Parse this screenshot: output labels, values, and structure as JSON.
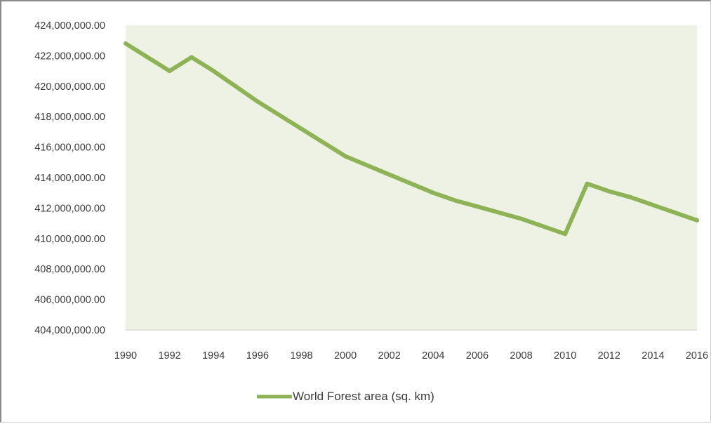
{
  "chart_data": {
    "type": "line",
    "title": "",
    "xlabel": "",
    "ylabel": "",
    "x": [
      1990,
      1991,
      1992,
      1993,
      1994,
      1995,
      1996,
      1997,
      1998,
      1999,
      2000,
      2001,
      2002,
      2003,
      2004,
      2005,
      2006,
      2007,
      2008,
      2009,
      2010,
      2011,
      2012,
      2013,
      2014,
      2015,
      2016
    ],
    "x_ticks": [
      "1990",
      "1992",
      "1994",
      "1996",
      "1998",
      "2000",
      "2002",
      "2004",
      "2006",
      "2008",
      "2010",
      "2012",
      "2014",
      "2016"
    ],
    "x_tick_values": [
      1990,
      1992,
      1994,
      1996,
      1998,
      2000,
      2002,
      2004,
      2006,
      2008,
      2010,
      2012,
      2014,
      2016
    ],
    "xlim": [
      1990,
      2016
    ],
    "ylim": [
      404000000,
      424000000
    ],
    "y_ticks": [
      "424,000,000.00",
      "422,000,000.00",
      "420,000,000.00",
      "418,000,000.00",
      "416,000,000.00",
      "414,000,000.00",
      "412,000,000.00",
      "410,000,000.00",
      "408,000,000.00",
      "406,000,000.00",
      "404,000,000.00"
    ],
    "y_tick_values": [
      424000000,
      422000000,
      420000000,
      418000000,
      416000000,
      414000000,
      412000000,
      410000000,
      408000000,
      406000000,
      404000000
    ],
    "grid": false,
    "legend_position": "bottom",
    "plot_background": "#eef2e4",
    "series": [
      {
        "name": "World Forest area (sq. km)",
        "color": "#8db356",
        "values": [
          422800000,
          421900000,
          421000000,
          421900000,
          421000000,
          420000000,
          419000000,
          418100000,
          417200000,
          416300000,
          415400000,
          414800000,
          414200000,
          413600000,
          413000000,
          412500000,
          412100000,
          411700000,
          411300000,
          410800000,
          410300000,
          413600000,
          413100000,
          412700000,
          412200000,
          411700000,
          411200000
        ]
      }
    ]
  }
}
